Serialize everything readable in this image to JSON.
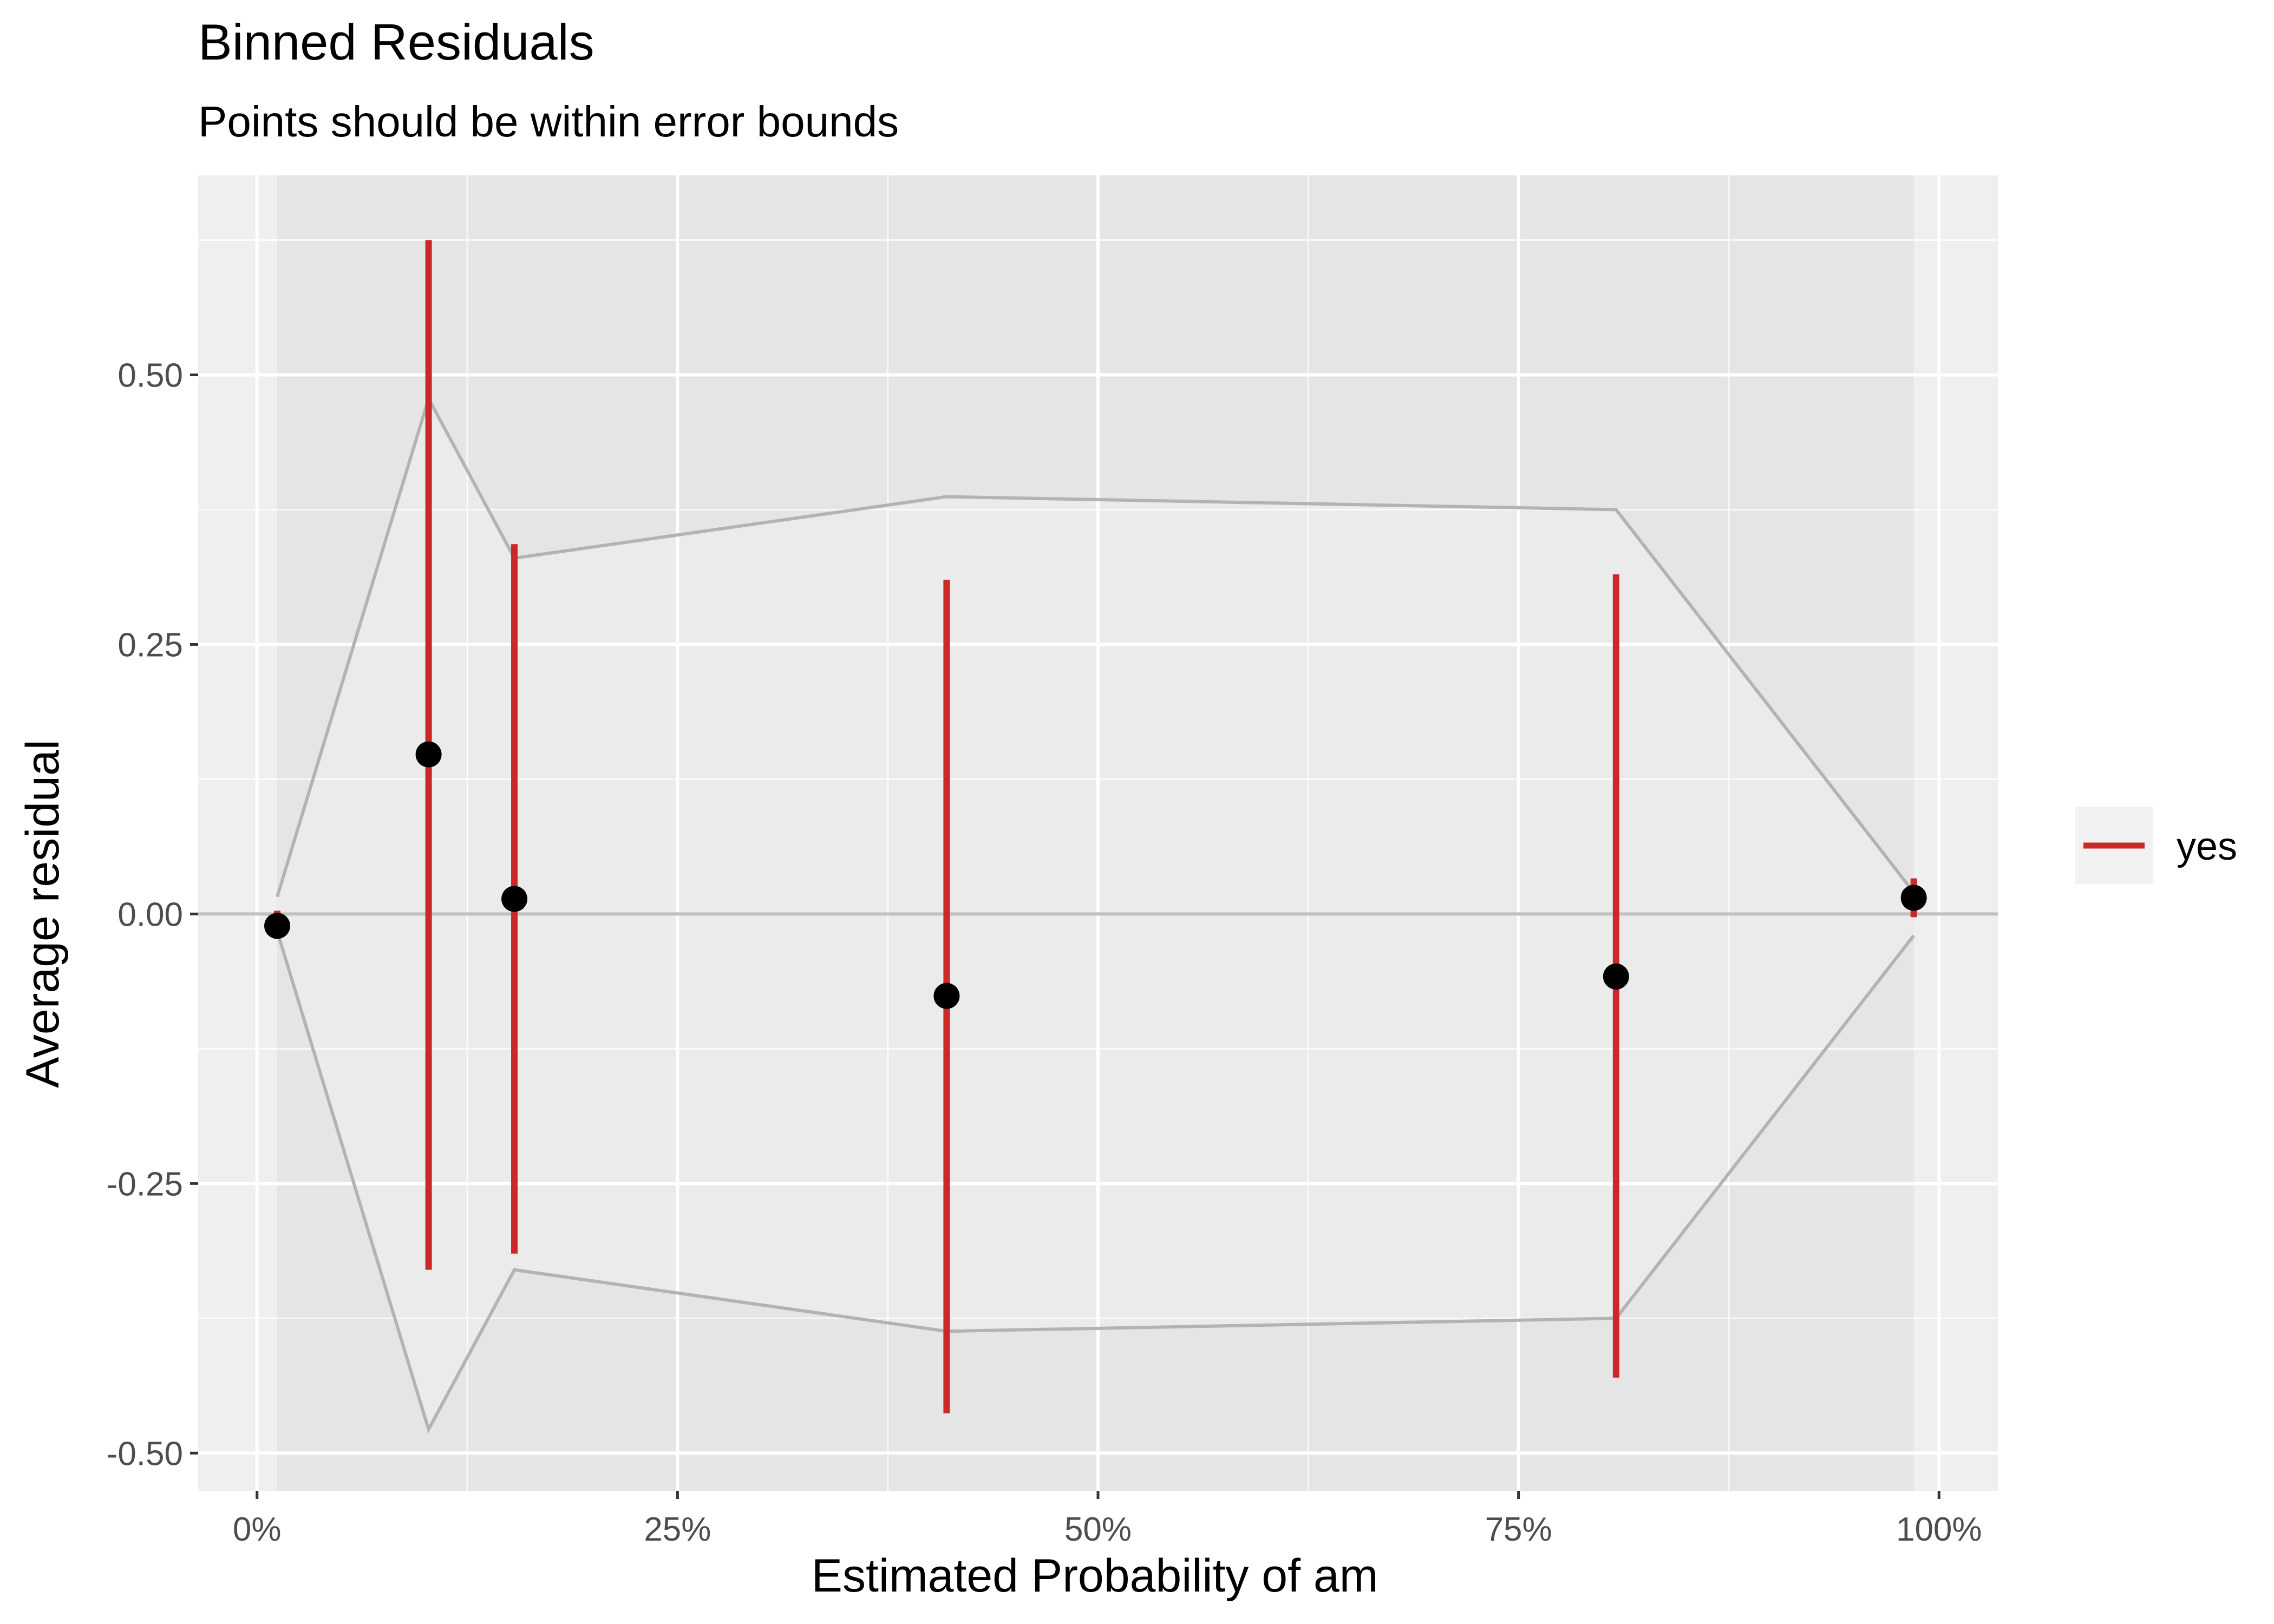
{
  "chart_data": {
    "type": "scatter",
    "title": "Binned Residuals",
    "subtitle": "Points should be within error bounds",
    "xlabel": "Estimated Probability of am",
    "ylabel": "Average residual",
    "xlim": [
      -0.035,
      1.035
    ],
    "ylim": [
      -0.535,
      0.685
    ],
    "x_ticks": [
      0,
      0.25,
      0.5,
      0.75,
      1.0
    ],
    "x_tick_labels": [
      "0%",
      "25%",
      "50%",
      "75%",
      "100%"
    ],
    "y_ticks": [
      -0.5,
      -0.25,
      0,
      0.25,
      0.5
    ],
    "y_tick_labels": [
      "-0.50",
      "-0.25",
      "0.00",
      "0.25",
      "0.50"
    ],
    "grid": true,
    "reference_line_y": 0,
    "shaded_band": [
      0.012,
      0.985
    ],
    "colors": {
      "panel_background": "#ebebeb",
      "gridline": "#ffffff",
      "bounds_line": "#b3b3b3",
      "zero_line": "#c0c0c0",
      "error_bar": "#cc2828",
      "point": "#000000"
    },
    "points": [
      {
        "x": 0.012,
        "y": -0.011,
        "ci_low": -0.023,
        "ci_high": 0.003
      },
      {
        "x": 0.102,
        "y": 0.148,
        "ci_low": -0.33,
        "ci_high": 0.625
      },
      {
        "x": 0.153,
        "y": 0.014,
        "ci_low": -0.315,
        "ci_high": 0.343
      },
      {
        "x": 0.41,
        "y": -0.076,
        "ci_low": -0.463,
        "ci_high": 0.31
      },
      {
        "x": 0.808,
        "y": -0.058,
        "ci_low": -0.43,
        "ci_high": 0.315
      },
      {
        "x": 0.985,
        "y": 0.015,
        "ci_low": -0.003,
        "ci_high": 0.033
      }
    ],
    "upper_bound": [
      {
        "x": 0.012,
        "y": 0.016
      },
      {
        "x": 0.102,
        "y": 0.478
      },
      {
        "x": 0.153,
        "y": 0.33
      },
      {
        "x": 0.41,
        "y": 0.387
      },
      {
        "x": 0.808,
        "y": 0.375
      },
      {
        "x": 0.985,
        "y": 0.02
      }
    ],
    "lower_bound": [
      {
        "x": 0.012,
        "y": -0.016
      },
      {
        "x": 0.102,
        "y": -0.478
      },
      {
        "x": 0.153,
        "y": -0.33
      },
      {
        "x": 0.41,
        "y": -0.387
      },
      {
        "x": 0.808,
        "y": -0.375
      },
      {
        "x": 0.985,
        "y": -0.02
      }
    ],
    "legend": {
      "placement": "right",
      "entries": [
        {
          "label": "yes",
          "color": "#cc2828"
        }
      ]
    }
  }
}
